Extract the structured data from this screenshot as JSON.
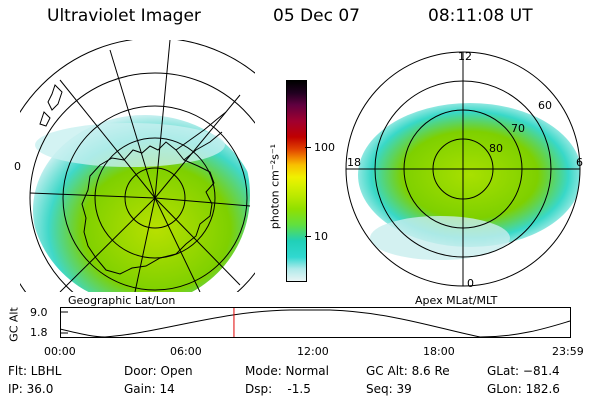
{
  "header": {
    "instrument": "Ultraviolet Imager",
    "date": "05 Dec 07",
    "time": "08:11:08 UT"
  },
  "left_panel": {
    "caption": "Geographic Lat/Lon",
    "edge_label": "0"
  },
  "right_panel": {
    "caption": "Apex MLat/MLT",
    "mlt_labels": {
      "top": "12",
      "left": "18",
      "right": "6",
      "bottom": "0"
    },
    "lat_labels": [
      "60",
      "70",
      "80"
    ]
  },
  "colorbar": {
    "unit_label": "photon cm⁻²s⁻¹",
    "tick_labels": [
      "100",
      "10"
    ]
  },
  "altitude_strip": {
    "ylabel": "GC Alt",
    "y_ticks": [
      "9.0",
      "1.8"
    ],
    "x_ticks": [
      "00:00",
      "06:00",
      "12:00",
      "18:00",
      "23:59"
    ],
    "marker_time_hours": 8.186
  },
  "info": {
    "flt": "Flt: LBHL",
    "ip": "IP: 36.0",
    "door": "Door: Open",
    "gain": "Gain: 14",
    "mode": "Mode: Normal",
    "dsp": "Dsp:    -1.5",
    "gcalt": "GC Alt: 8.6 Re",
    "seq": "Seq: 39",
    "glat": "GLat: −81.4",
    "glon": "GLon: 182.6"
  },
  "colors": {
    "aurora_green": "#7ed000",
    "aurora_yellow": "#c6e600",
    "aurora_cyan": "#33d8d0",
    "marker": "#e00000"
  }
}
